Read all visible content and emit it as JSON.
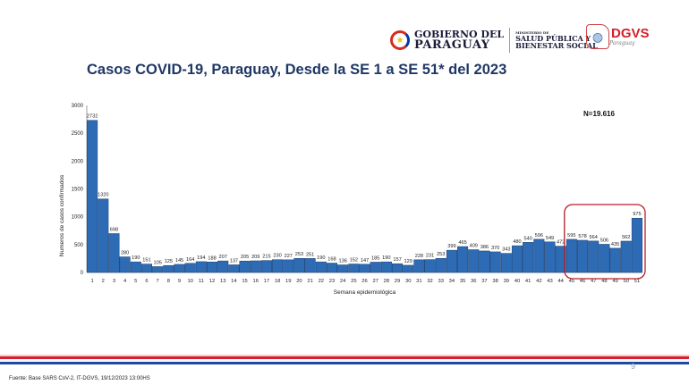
{
  "header": {
    "gobierno_line1": "GOBIERNO DEL",
    "gobierno_line2": "PARAGUAY",
    "ministerio_small": "MINISTERIO DE",
    "ministerio_line1": "SALUD PÚBLICA Y",
    "ministerio_line2": "BIENESTAR SOCIAL",
    "dgvs": "DGVS",
    "dgvs_sub": "Paraguay"
  },
  "chart_data": {
    "type": "bar",
    "title": "Casos COVID-19, Paraguay, Desde la SE 1 a SE 51* del 2023",
    "xlabel": "Semana epidemiológica",
    "ylabel": "Numeros de casos confirmados",
    "ylim": [
      0,
      3000
    ],
    "yticks": [
      "0",
      "500",
      "1000",
      "1500",
      "2000",
      "2500",
      "3000"
    ],
    "ytick_values": [
      0,
      500,
      1000,
      1500,
      2000,
      2500,
      3000
    ],
    "annotation": "N=19.616",
    "highlight_range": [
      45,
      51
    ],
    "bar_color": "#2e6bb5",
    "highlight_color": "#b0202a",
    "categories": [
      "1",
      "2",
      "3",
      "4",
      "5",
      "6",
      "7",
      "8",
      "9",
      "10",
      "11",
      "12",
      "13",
      "14",
      "15",
      "16",
      "17",
      "18",
      "19",
      "20",
      "21",
      "22",
      "23",
      "24",
      "25",
      "26",
      "27",
      "28",
      "29",
      "30",
      "31",
      "32",
      "33",
      "34",
      "35",
      "36",
      "37",
      "38",
      "39",
      "40",
      "41",
      "42",
      "43",
      "44",
      "45",
      "46",
      "47",
      "48",
      "49",
      "50",
      "51"
    ],
    "values": [
      2732,
      1320,
      698,
      280,
      190,
      151,
      105,
      125,
      145,
      164,
      194,
      188,
      207,
      137,
      205,
      209,
      215,
      230,
      227,
      253,
      251,
      190,
      168,
      136,
      152,
      147,
      185,
      190,
      157,
      129,
      228,
      231,
      253,
      399,
      465,
      409,
      386,
      370,
      343,
      480,
      540,
      596,
      549,
      472,
      595,
      578,
      564,
      506,
      435,
      562,
      975
    ]
  },
  "footer": {
    "page_number": "9",
    "source": "Fuente: Base SARS CoV-2, IT-DGVS, 19/12/2023 13:00HS"
  }
}
